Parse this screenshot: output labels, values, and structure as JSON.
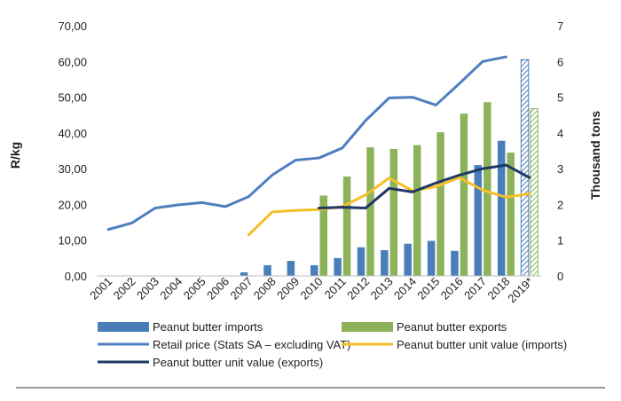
{
  "chart_data": {
    "type": "bar",
    "categories": [
      "2001",
      "2002",
      "2003",
      "2004",
      "2005",
      "2006",
      "2007",
      "2008",
      "2009",
      "2010",
      "2011",
      "2012",
      "2013",
      "2014",
      "2015",
      "2016",
      "2017",
      "2018",
      "2019*"
    ],
    "ylabel_left": "R/kg",
    "ylabel_right": "Thousand tons",
    "ylim_left": [
      0,
      70
    ],
    "ylim_right": [
      0,
      7
    ],
    "left_ticks": [
      "0,00",
      "10,00",
      "20,00",
      "30,00",
      "40,00",
      "50,00",
      "60,00",
      "70,00"
    ],
    "right_ticks": [
      "0",
      "1",
      "2",
      "3",
      "4",
      "5",
      "6",
      "7"
    ],
    "series": [
      {
        "name": "Peanut butter imports",
        "kind": "bar",
        "axis": "right",
        "color": "#4a7ebb",
        "values": [
          null,
          null,
          null,
          null,
          null,
          null,
          0.1,
          0.3,
          0.42,
          0.3,
          0.5,
          0.8,
          0.72,
          0.9,
          0.98,
          0.7,
          3.1,
          3.78,
          6.05
        ]
      },
      {
        "name": "Peanut butter exports",
        "kind": "bar",
        "axis": "right",
        "color": "#8db35a",
        "values": [
          null,
          null,
          null,
          null,
          null,
          null,
          null,
          null,
          null,
          2.25,
          2.78,
          3.6,
          3.55,
          3.66,
          4.02,
          4.54,
          4.86,
          3.45,
          4.68
        ]
      },
      {
        "name": "Retail price (Stats SA – excluding VAT)",
        "kind": "line",
        "axis": "left",
        "color": "#4f7fc0",
        "values": [
          13.0,
          14.8,
          19.0,
          19.9,
          20.5,
          19.4,
          22.2,
          28.2,
          32.4,
          33.0,
          35.8,
          43.5,
          49.8,
          50.0,
          47.8,
          53.8,
          60.0,
          61.3,
          null
        ]
      },
      {
        "name": "Peanut butter unit value (imports)",
        "kind": "line",
        "axis": "left",
        "color": "#f5bf2a",
        "values": [
          null,
          null,
          null,
          null,
          null,
          null,
          11.5,
          17.9,
          18.3,
          18.6,
          19.4,
          22.7,
          27.4,
          23.8,
          25.0,
          27.5,
          24.0,
          22.0,
          23.0
        ]
      },
      {
        "name": "Peanut butter unit value (exports)",
        "kind": "line",
        "axis": "left",
        "color": "#1f3864",
        "values": [
          null,
          null,
          null,
          null,
          null,
          null,
          null,
          null,
          null,
          19.0,
          19.2,
          19.0,
          24.5,
          23.5,
          26.0,
          28.2,
          30.0,
          31.0,
          27.5
        ]
      }
    ],
    "hatched_last_category": true,
    "legend_position": "bottom",
    "grid": false
  }
}
